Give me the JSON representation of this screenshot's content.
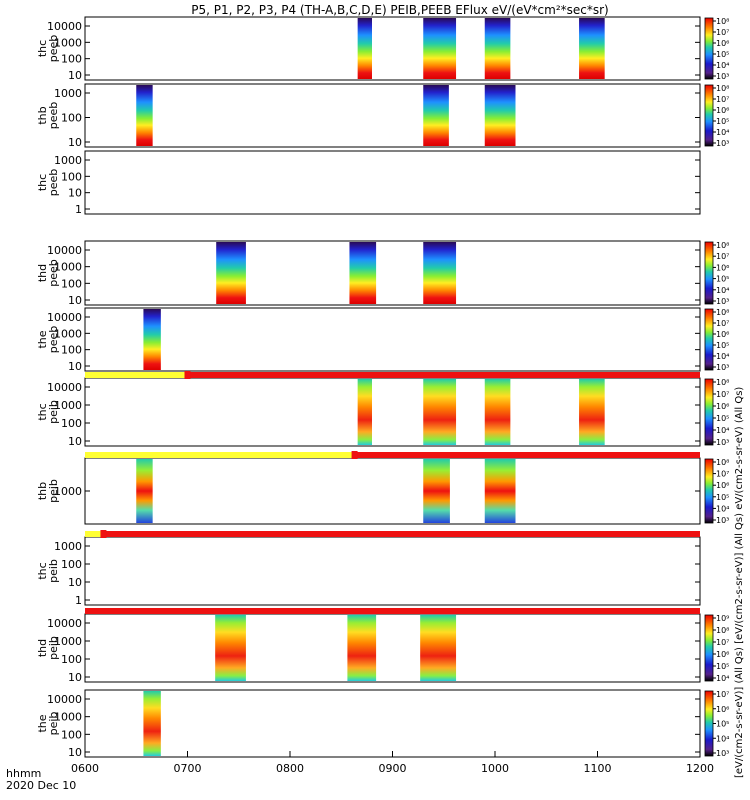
{
  "chart_data": {
    "type": "heatmap",
    "title": "P5, P1, P2, P3, P4 (TH-A,B,C,D,E) PEIB,PEEB EFlux eV/(eV*cm²*sec*sr)",
    "date_label": "2020 Dec 10",
    "x_label": "hhmm",
    "x_range": [
      600,
      1200
    ],
    "x_ticks": [
      "0600",
      "0700",
      "0800",
      "0900",
      "1000",
      "1100",
      "1200"
    ],
    "colorbar_label": "[eV/(cm2-s-sr-eV)] (All Qs) [eV/(cm2-s-sr-eV)] (All Qs) eV/(cm2-s-sr-eV) (All Qs)",
    "colors": {
      "yellow_bar": "#ffff33",
      "red_bar": "#ee1111"
    },
    "panels": [
      {
        "probe": "thc",
        "species": "peeb",
        "y_ticks": [
          "10",
          "100",
          "1000",
          "10000"
        ],
        "colorbar": {
          "ticks": [
            "10³",
            "10⁴",
            "10⁵",
            "10⁶",
            "10⁷",
            "10⁸"
          ]
        },
        "segments": [
          {
            "start": 866,
            "end": 880,
            "style": "ee"
          },
          {
            "start": 930,
            "end": 962,
            "style": "ee"
          },
          {
            "start": 990,
            "end": 1015,
            "style": "ee"
          },
          {
            "start": 1082,
            "end": 1107,
            "style": "ee"
          }
        ]
      },
      {
        "probe": "thb",
        "species": "peeb",
        "y_ticks": [
          "10",
          "100",
          "1000"
        ],
        "colorbar": {
          "ticks": [
            "10³",
            "10⁴",
            "10⁵",
            "10⁶",
            "10⁷",
            "10⁸"
          ]
        },
        "segments": [
          {
            "start": 650,
            "end": 666,
            "style": "ee"
          },
          {
            "start": 930,
            "end": 955,
            "style": "ee"
          },
          {
            "start": 990,
            "end": 1020,
            "style": "ee"
          }
        ]
      },
      {
        "probe": "thc",
        "species": "peeb",
        "y_ticks": [
          "1",
          "10",
          "100",
          "1000"
        ],
        "colorbar": null,
        "segments": []
      },
      {
        "probe": "thd",
        "species": "peeb",
        "y_ticks": [
          "10",
          "100",
          "1000",
          "10000"
        ],
        "colorbar": {
          "ticks": [
            "10³",
            "10⁴",
            "10⁵",
            "10⁶",
            "10⁷",
            "10⁸"
          ]
        },
        "segments": [
          {
            "start": 728,
            "end": 757,
            "style": "ee"
          },
          {
            "start": 858,
            "end": 884,
            "style": "ee"
          },
          {
            "start": 930,
            "end": 962,
            "style": "ee"
          }
        ]
      },
      {
        "probe": "the",
        "species": "peeb",
        "y_ticks": [
          "10",
          "100",
          "1000",
          "10000"
        ],
        "colorbar": {
          "ticks": [
            "10³",
            "10⁴",
            "10⁵",
            "10⁶",
            "10⁷",
            "10⁸"
          ]
        },
        "segments": [
          {
            "start": 657,
            "end": 674,
            "style": "ee"
          }
        ]
      },
      {
        "probe": "thc",
        "species": "peib",
        "y_ticks": [
          "10",
          "100",
          "1000",
          "10000"
        ],
        "colorbar": {
          "ticks": [
            "10³",
            "10⁴",
            "10⁵",
            "10⁶",
            "10⁷",
            "10⁸"
          ]
        },
        "segments": [
          {
            "start": 866,
            "end": 880,
            "style": "ie"
          },
          {
            "start": 930,
            "end": 962,
            "style": "ie"
          },
          {
            "start": 990,
            "end": 1015,
            "style": "ie"
          },
          {
            "start": 1082,
            "end": 1107,
            "style": "ie"
          }
        ]
      },
      {
        "probe": "thb",
        "species": "peib",
        "y_ticks": [
          "1000"
        ],
        "colorbar": {
          "ticks": [
            "10³",
            "10⁴",
            "10⁵",
            "10⁶",
            "10⁷",
            "10⁸"
          ]
        },
        "segments": [
          {
            "start": 650,
            "end": 666,
            "style": "ib"
          },
          {
            "start": 930,
            "end": 956,
            "style": "ib"
          },
          {
            "start": 990,
            "end": 1020,
            "style": "ib"
          }
        ]
      },
      {
        "probe": "thc",
        "species": "peib",
        "y_ticks": [
          "1",
          "10",
          "100",
          "1000"
        ],
        "colorbar": null,
        "segments": []
      },
      {
        "probe": "thd",
        "species": "peib",
        "y_ticks": [
          "10",
          "100",
          "1000",
          "10000"
        ],
        "colorbar": {
          "ticks": [
            "10⁴",
            "10⁵",
            "10⁶",
            "10⁷",
            "10⁸",
            "10⁹"
          ]
        },
        "segments": [
          {
            "start": 727,
            "end": 757,
            "style": "ie"
          },
          {
            "start": 856,
            "end": 884,
            "style": "ie"
          },
          {
            "start": 927,
            "end": 962,
            "style": "ie"
          }
        ]
      },
      {
        "probe": "the",
        "species": "peib",
        "y_ticks": [
          "10",
          "100",
          "1000",
          "10000"
        ],
        "colorbar": {
          "ticks": [
            "10³",
            "10⁴",
            "10⁵",
            "10⁶",
            "10⁷"
          ]
        },
        "segments": [
          {
            "start": 657,
            "end": 674,
            "style": "ie"
          }
        ]
      }
    ],
    "status_bars": [
      {
        "after_panel": 4,
        "yellow_until": 700
      },
      {
        "after_panel": 6,
        "yellow_until": 863
      },
      {
        "after_panel": 7,
        "yellow_until": 618
      },
      {
        "after_panel": 8,
        "yellow_until": null
      }
    ]
  }
}
